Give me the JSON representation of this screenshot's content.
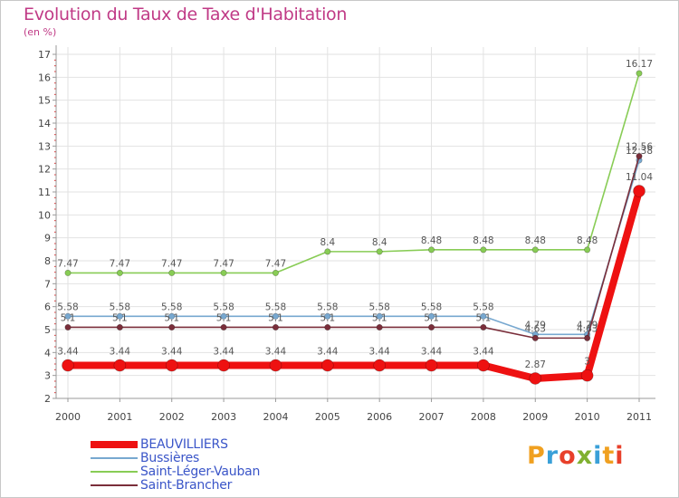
{
  "title": "Evolution du Taux de Taxe d'Habitation",
  "subtitle": "(en %)",
  "brand": {
    "logo_text": "Proxiti",
    "letter_colors": [
      "#f0a020",
      "#3aa0d8",
      "#e8402a",
      "#80b030",
      "#3aa0d8",
      "#f0a020",
      "#e8402a"
    ]
  },
  "chart_data": {
    "type": "line",
    "title": "Evolution du Taux de Taxe d'Habitation",
    "ylabel": "(en %)",
    "xlabel": "",
    "x": [
      "2000",
      "2001",
      "2002",
      "2003",
      "2004",
      "2005",
      "2006",
      "2007",
      "2008",
      "2009",
      "2010",
      "2011"
    ],
    "ylim": [
      2,
      17
    ],
    "yticks": [
      "2",
      "3",
      "4",
      "5",
      "6",
      "7",
      "8",
      "9",
      "10",
      "11",
      "12",
      "13",
      "14",
      "15",
      "16",
      "17"
    ],
    "grid": true,
    "legend_position": "bottom-left",
    "series": [
      {
        "name": "Saint-Léger-Vauban",
        "color": "#88cc55",
        "values": [
          7.47,
          7.47,
          7.47,
          7.47,
          7.47,
          8.4,
          8.4,
          8.48,
          8.48,
          8.48,
          8.48,
          16.17
        ],
        "labels": [
          "7.47",
          "7.47",
          "7.47",
          "7.47",
          "7.47",
          "8.4",
          "8.4",
          "8.48",
          "8.48",
          "8.48",
          "8.48",
          "16.17"
        ]
      },
      {
        "name": "Bussières",
        "color": "#77a8d0",
        "values": [
          5.58,
          5.58,
          5.58,
          5.58,
          5.58,
          5.58,
          5.58,
          5.58,
          5.58,
          4.79,
          4.79,
          12.38
        ],
        "labels": [
          "5.58",
          "5.58",
          "5.58",
          "5.58",
          "5.58",
          "5.58",
          "5.58",
          "5.58",
          "5.58",
          "4.79",
          "4.79",
          "12.38"
        ]
      },
      {
        "name": "Saint-Brancher",
        "color": "#7a2e3a",
        "values": [
          5.1,
          5.1,
          5.1,
          5.1,
          5.1,
          5.1,
          5.1,
          5.1,
          5.1,
          4.63,
          4.63,
          12.56
        ],
        "labels": [
          "5.1",
          "5.1",
          "5.1",
          "5.1",
          "5.1",
          "5.1",
          "5.1",
          "5.1",
          "5.1",
          "4.63",
          "4.63",
          "12.56"
        ]
      },
      {
        "name": "BEAUVILLIERS",
        "color": "#ee1111",
        "values": [
          3.44,
          3.44,
          3.44,
          3.44,
          3.44,
          3.44,
          3.44,
          3.44,
          3.44,
          2.87,
          3.0,
          11.04
        ],
        "labels": [
          "3.44",
          "3.44",
          "3.44",
          "3.44",
          "3.44",
          "3.44",
          "3.44",
          "3.44",
          "3.44",
          "2.87",
          "3",
          "11.04"
        ]
      }
    ],
    "legend": [
      "BEAUVILLIERS",
      "Bussières",
      "Saint-Léger-Vauban",
      "Saint-Brancher"
    ]
  }
}
